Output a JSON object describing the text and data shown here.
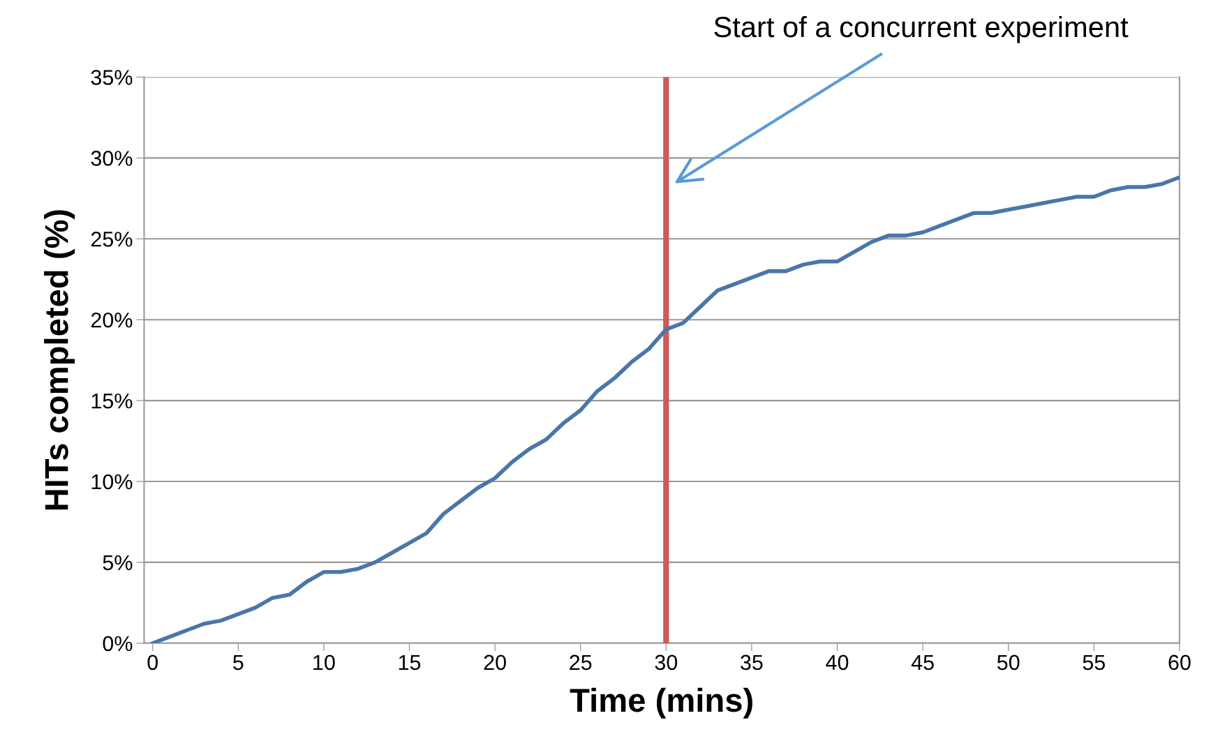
{
  "chart_data": {
    "type": "line",
    "xlabel": "Time (mins)",
    "ylabel": "HITs completed (%)",
    "x": [
      0,
      1,
      2,
      3,
      4,
      5,
      6,
      7,
      8,
      9,
      10,
      11,
      12,
      13,
      14,
      15,
      16,
      17,
      18,
      19,
      20,
      21,
      22,
      23,
      24,
      25,
      26,
      27,
      28,
      29,
      30,
      31,
      32,
      33,
      34,
      35,
      36,
      37,
      38,
      39,
      40,
      41,
      42,
      43,
      44,
      45,
      46,
      47,
      48,
      49,
      50,
      51,
      52,
      53,
      54,
      55,
      56,
      57,
      58,
      59,
      60
    ],
    "series": [
      {
        "color": "#4a76a8",
        "values": [
          0,
          0.4,
          0.8,
          1.2,
          1.4,
          1.8,
          2.2,
          2.8,
          3.0,
          3.8,
          4.4,
          4.4,
          4.6,
          5.0,
          5.6,
          6.2,
          6.8,
          8.0,
          8.8,
          9.6,
          10.2,
          11.2,
          12.0,
          12.6,
          13.6,
          14.4,
          15.6,
          16.4,
          17.4,
          18.2,
          19.4,
          19.8,
          20.8,
          21.8,
          22.2,
          22.6,
          23.0,
          23.0,
          23.4,
          23.6,
          23.6,
          24.2,
          24.8,
          25.2,
          25.2,
          25.4,
          25.8,
          26.2,
          26.6,
          26.6,
          26.8,
          27.0,
          27.2,
          27.4,
          27.6,
          27.6,
          28.0,
          28.2,
          28.2,
          28.4,
          28.8
        ]
      }
    ],
    "xlim": [
      -0.5,
      60
    ],
    "xticks": [
      0,
      5,
      10,
      15,
      20,
      25,
      30,
      35,
      40,
      45,
      50,
      55,
      60
    ],
    "ylim": [
      0,
      35
    ],
    "yticks": [
      {
        "value": 0,
        "label": "0%"
      },
      {
        "value": 5,
        "label": "5%"
      },
      {
        "value": 10,
        "label": "10%"
      },
      {
        "value": 15,
        "label": "15%"
      },
      {
        "value": 20,
        "label": "20%"
      },
      {
        "value": 25,
        "label": "25%"
      },
      {
        "value": 30,
        "label": "30%"
      },
      {
        "value": 35,
        "label": "35%"
      }
    ],
    "grid": "y",
    "marker": "none",
    "line_style": "solid",
    "legend": false,
    "ref_lines": [
      {
        "axis": "x",
        "value": 30,
        "color": "#cd5b57",
        "line_style": "solid",
        "label": "Start of a concurrent experiment"
      }
    ]
  }
}
